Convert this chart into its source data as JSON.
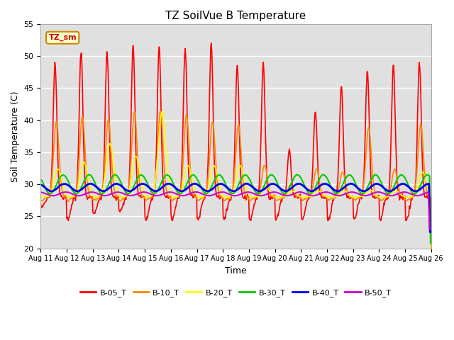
{
  "title": "TZ SoilVue B Temperature",
  "xlabel": "Time",
  "ylabel": "Soil Temperature (C)",
  "ylim": [
    20,
    55
  ],
  "xlim_days": 15,
  "x_tick_labels": [
    "Aug 11",
    "Aug 12",
    "Aug 13",
    "Aug 14",
    "Aug 15",
    "Aug 16",
    "Aug 17",
    "Aug 18",
    "Aug 19",
    "Aug 20",
    "Aug 21",
    "Aug 22",
    "Aug 23",
    "Aug 24",
    "Aug 25",
    "Aug 26"
  ],
  "background_color": "#ffffff",
  "plot_bg_color": "#e0e0e0",
  "grid_color": "#ffffff",
  "annotation_label": "TZ_sm",
  "annotation_color": "#cc0000",
  "annotation_bg": "#ffffcc",
  "annotation_border": "#cc8800",
  "series_names": [
    "B-05_T",
    "B-10_T",
    "B-20_T",
    "B-30_T",
    "B-40_T",
    "B-50_T"
  ],
  "series_colors": [
    "#ff0000",
    "#ff8800",
    "#ffff00",
    "#00cc00",
    "#0000ee",
    "#cc00cc"
  ],
  "series_lw": [
    1.2,
    1.2,
    1.2,
    1.5,
    2.0,
    1.5
  ],
  "pts_per_day": 48,
  "n_days": 15,
  "B05_peaks": [
    49.0,
    50.8,
    50.8,
    51.8,
    51.5,
    51.2,
    51.8,
    48.5,
    48.8,
    35.5,
    41.2,
    45.5,
    48.0,
    48.5,
    49.0
  ],
  "B05_troughs": [
    26.5,
    24.5,
    25.5,
    26.0,
    24.5,
    24.5,
    24.5,
    24.5,
    24.5,
    24.5,
    24.5,
    24.5,
    24.5,
    24.5,
    24.5
  ],
  "B05_base": 28.0,
  "B10_peaks": [
    40.0,
    40.8,
    40.5,
    41.5,
    41.5,
    41.0,
    40.0,
    39.5,
    33.0,
    30.0,
    32.5,
    32.0,
    39.0,
    32.5,
    39.5
  ],
  "B10_base": 28.0,
  "B20_peaks": [
    32.5,
    33.5,
    36.5,
    34.5,
    41.5,
    33.0,
    33.0,
    33.0,
    29.5,
    29.0,
    29.0,
    29.0,
    29.0,
    29.0,
    32.0
  ],
  "B20_base": 28.0,
  "B30_base": 30.0,
  "B30_amp": 1.5,
  "B40_base": 29.5,
  "B40_amp": 0.6,
  "B50_base": 28.5,
  "B50_amp": 0.3
}
